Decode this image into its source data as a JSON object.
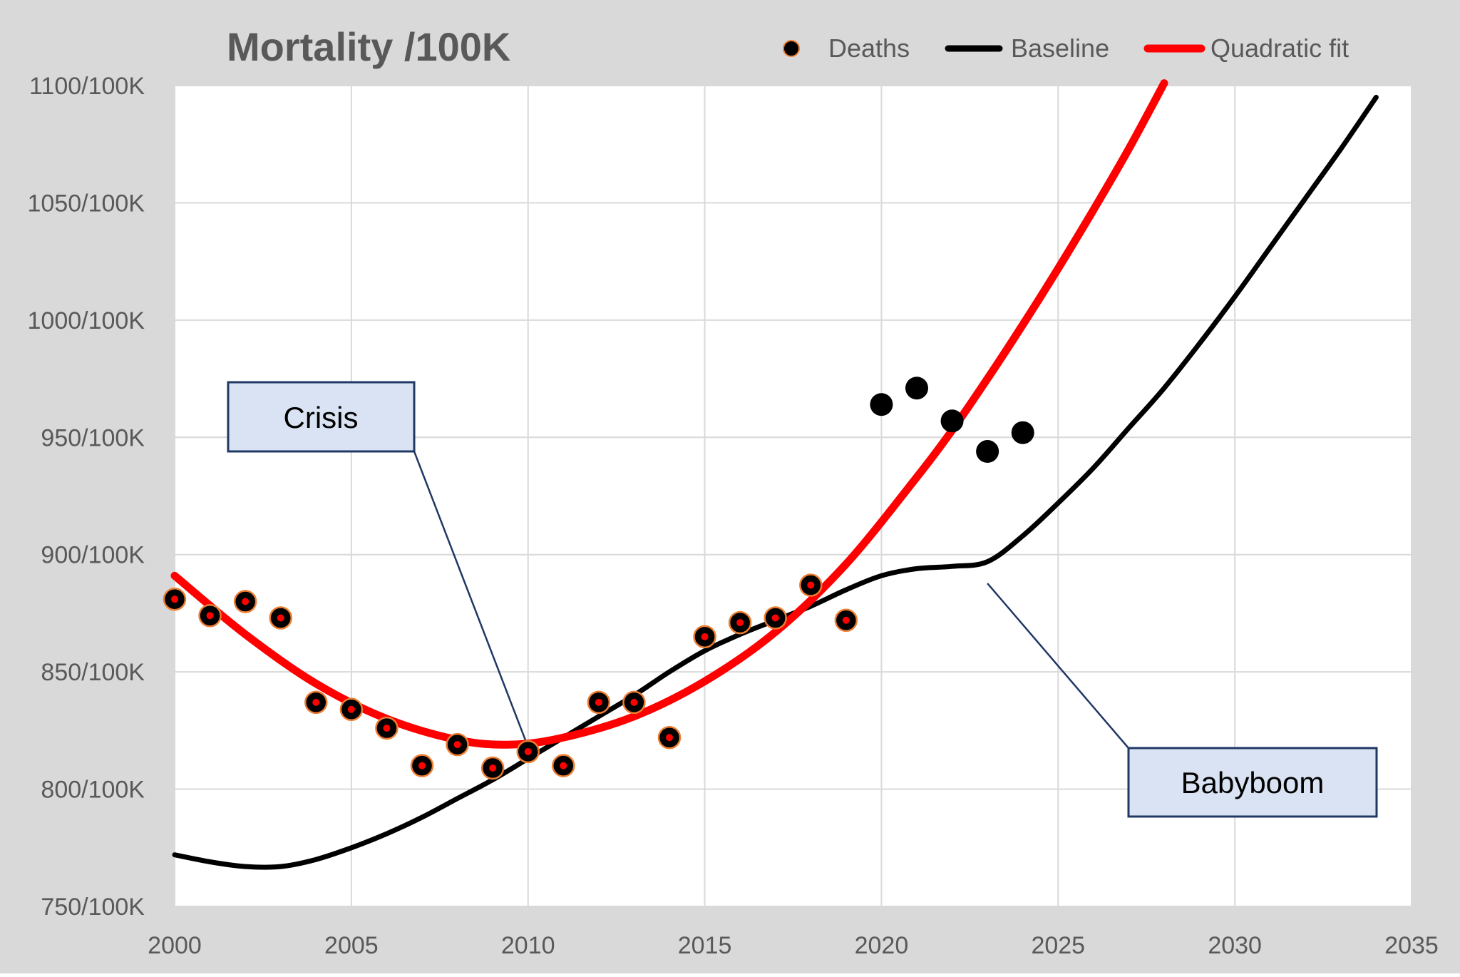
{
  "chart_data": {
    "type": "scatter",
    "title": "Mortality /100K",
    "xlabel": "",
    "ylabel": "",
    "xlim": [
      2000,
      2035
    ],
    "ylim": [
      750,
      1100
    ],
    "x_ticks": [
      2000,
      2005,
      2010,
      2015,
      2020,
      2025,
      2030,
      2035
    ],
    "y_ticks": [
      750,
      800,
      850,
      900,
      950,
      1000,
      1050,
      1100
    ],
    "y_tick_suffix": "/100K",
    "grid": true,
    "legend_position": "top-right",
    "colors": {
      "background_outer": "#d9d9d9",
      "plot_area": "#ffffff",
      "grid": "#d9d9d9",
      "deaths_marker": "#000000",
      "deaths_marker_edge": "#ed7d31",
      "deaths_marker_center": "#ff0000",
      "baseline": "#000000",
      "quadratic_fit": "#ff0000",
      "annotation_fill": "#dae3f3",
      "annotation_border": "#1f3864"
    },
    "series": [
      {
        "name": "Deaths",
        "kind": "scatter",
        "points": [
          {
            "x": 2000,
            "y": 881,
            "highlight": false
          },
          {
            "x": 2001,
            "y": 874,
            "highlight": false
          },
          {
            "x": 2002,
            "y": 880,
            "highlight": false
          },
          {
            "x": 2003,
            "y": 873,
            "highlight": false
          },
          {
            "x": 2004,
            "y": 837,
            "highlight": false
          },
          {
            "x": 2005,
            "y": 834,
            "highlight": false
          },
          {
            "x": 2006,
            "y": 826,
            "highlight": false
          },
          {
            "x": 2007,
            "y": 810,
            "highlight": false
          },
          {
            "x": 2008,
            "y": 819,
            "highlight": false
          },
          {
            "x": 2009,
            "y": 809,
            "highlight": false
          },
          {
            "x": 2010,
            "y": 816,
            "highlight": false
          },
          {
            "x": 2011,
            "y": 810,
            "highlight": false
          },
          {
            "x": 2012,
            "y": 837,
            "highlight": false
          },
          {
            "x": 2013,
            "y": 837,
            "highlight": false
          },
          {
            "x": 2014,
            "y": 822,
            "highlight": false
          },
          {
            "x": 2015,
            "y": 865,
            "highlight": false
          },
          {
            "x": 2016,
            "y": 871,
            "highlight": false
          },
          {
            "x": 2017,
            "y": 873,
            "highlight": false
          },
          {
            "x": 2018,
            "y": 887,
            "highlight": false
          },
          {
            "x": 2019,
            "y": 872,
            "highlight": false
          },
          {
            "x": 2020,
            "y": 964,
            "highlight": true
          },
          {
            "x": 2021,
            "y": 971,
            "highlight": true
          },
          {
            "x": 2022,
            "y": 957,
            "highlight": true
          },
          {
            "x": 2023,
            "y": 944,
            "highlight": true
          },
          {
            "x": 2024,
            "y": 952,
            "highlight": true
          }
        ]
      },
      {
        "name": "Baseline",
        "kind": "line",
        "x": [
          2000,
          2001,
          2002,
          2003,
          2004,
          2005,
          2006,
          2007,
          2008,
          2009,
          2010,
          2011,
          2012,
          2013,
          2014,
          2015,
          2016,
          2017,
          2018,
          2019,
          2020,
          2021,
          2022,
          2023,
          2024,
          2025,
          2026,
          2027,
          2028,
          2029,
          2030,
          2031,
          2032,
          2033,
          2034
        ],
        "y": [
          772,
          769,
          767,
          767,
          770,
          775,
          781,
          788,
          796,
          804,
          813,
          822,
          831,
          840,
          850,
          859,
          866,
          872,
          878,
          885,
          891,
          894,
          895,
          897,
          908,
          922,
          937,
          954,
          971,
          990,
          1010,
          1031,
          1052,
          1073,
          1095
        ]
      },
      {
        "name": "Quadratic fit",
        "kind": "line",
        "x": [
          2000,
          2002,
          2004,
          2006,
          2008,
          2009.5,
          2011,
          2013,
          2015,
          2017,
          2019,
          2021,
          2022,
          2023,
          2024,
          2025,
          2026,
          2027,
          2028
        ],
        "y": [
          891,
          866,
          845,
          830,
          821,
          819,
          822,
          831,
          846,
          867,
          896,
          933,
          953,
          975,
          998,
          1022,
          1047,
          1073,
          1101
        ]
      }
    ],
    "annotations": [
      {
        "text": "Crisis",
        "target_x": 2010,
        "target_y": 818
      },
      {
        "text": "Babyboom",
        "target_x": 2023,
        "target_y": 892
      }
    ]
  }
}
